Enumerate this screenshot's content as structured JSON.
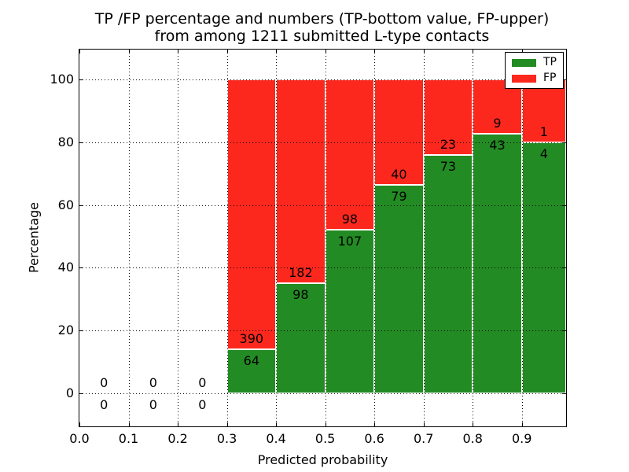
{
  "chart_data": {
    "type": "bar",
    "stacked": true,
    "values_are": "percent of bin total; labels show raw counts (TP bottom, FP upper)",
    "title_line1": "TP /FP percentage and numbers (TP-bottom value, FP-upper)",
    "title_line2": "from among 1211 submitted L-type contacts",
    "xlabel": "Predicted probability",
    "ylabel": "Percentage",
    "total_submitted": 1211,
    "xlim": [
      0,
      0.99
    ],
    "ylim": [
      -10.5,
      109.5
    ],
    "grid": "dotted both axes",
    "x_tick_values": [
      0.0,
      0.1,
      0.2,
      0.3,
      0.4,
      0.5,
      0.6,
      0.7,
      0.8,
      0.9
    ],
    "x_tick_labels": [
      "0.0",
      "0.1",
      "0.2",
      "0.3",
      "0.4",
      "0.5",
      "0.6",
      "0.7",
      "0.8",
      "0.9"
    ],
    "y_tick_values": [
      0,
      20,
      40,
      60,
      80,
      100
    ],
    "y_tick_labels": [
      "0",
      "20",
      "40",
      "60",
      "80",
      "100"
    ],
    "colors": {
      "tp": "#238b23",
      "fp": "#fc281e",
      "bar_edge": "#ffffff"
    },
    "legend": {
      "position": "upper right",
      "items": [
        {
          "label": "TP",
          "color": "#238b23"
        },
        {
          "label": "FP",
          "color": "#fc281e"
        }
      ]
    },
    "bins": [
      {
        "range": [
          0.0,
          0.1
        ],
        "tp": 0,
        "fp": 0
      },
      {
        "range": [
          0.1,
          0.2
        ],
        "tp": 0,
        "fp": 0
      },
      {
        "range": [
          0.2,
          0.3
        ],
        "tp": 0,
        "fp": 0
      },
      {
        "range": [
          0.3,
          0.4
        ],
        "tp": 64,
        "fp": 390
      },
      {
        "range": [
          0.4,
          0.5
        ],
        "tp": 98,
        "fp": 182
      },
      {
        "range": [
          0.5,
          0.6
        ],
        "tp": 107,
        "fp": 98
      },
      {
        "range": [
          0.6,
          0.7
        ],
        "tp": 79,
        "fp": 40
      },
      {
        "range": [
          0.7,
          0.8
        ],
        "tp": 73,
        "fp": 23
      },
      {
        "range": [
          0.8,
          0.9
        ],
        "tp": 43,
        "fp": 9
      },
      {
        "range": [
          0.9,
          1.0
        ],
        "tp": 4,
        "fp": 1
      }
    ]
  }
}
